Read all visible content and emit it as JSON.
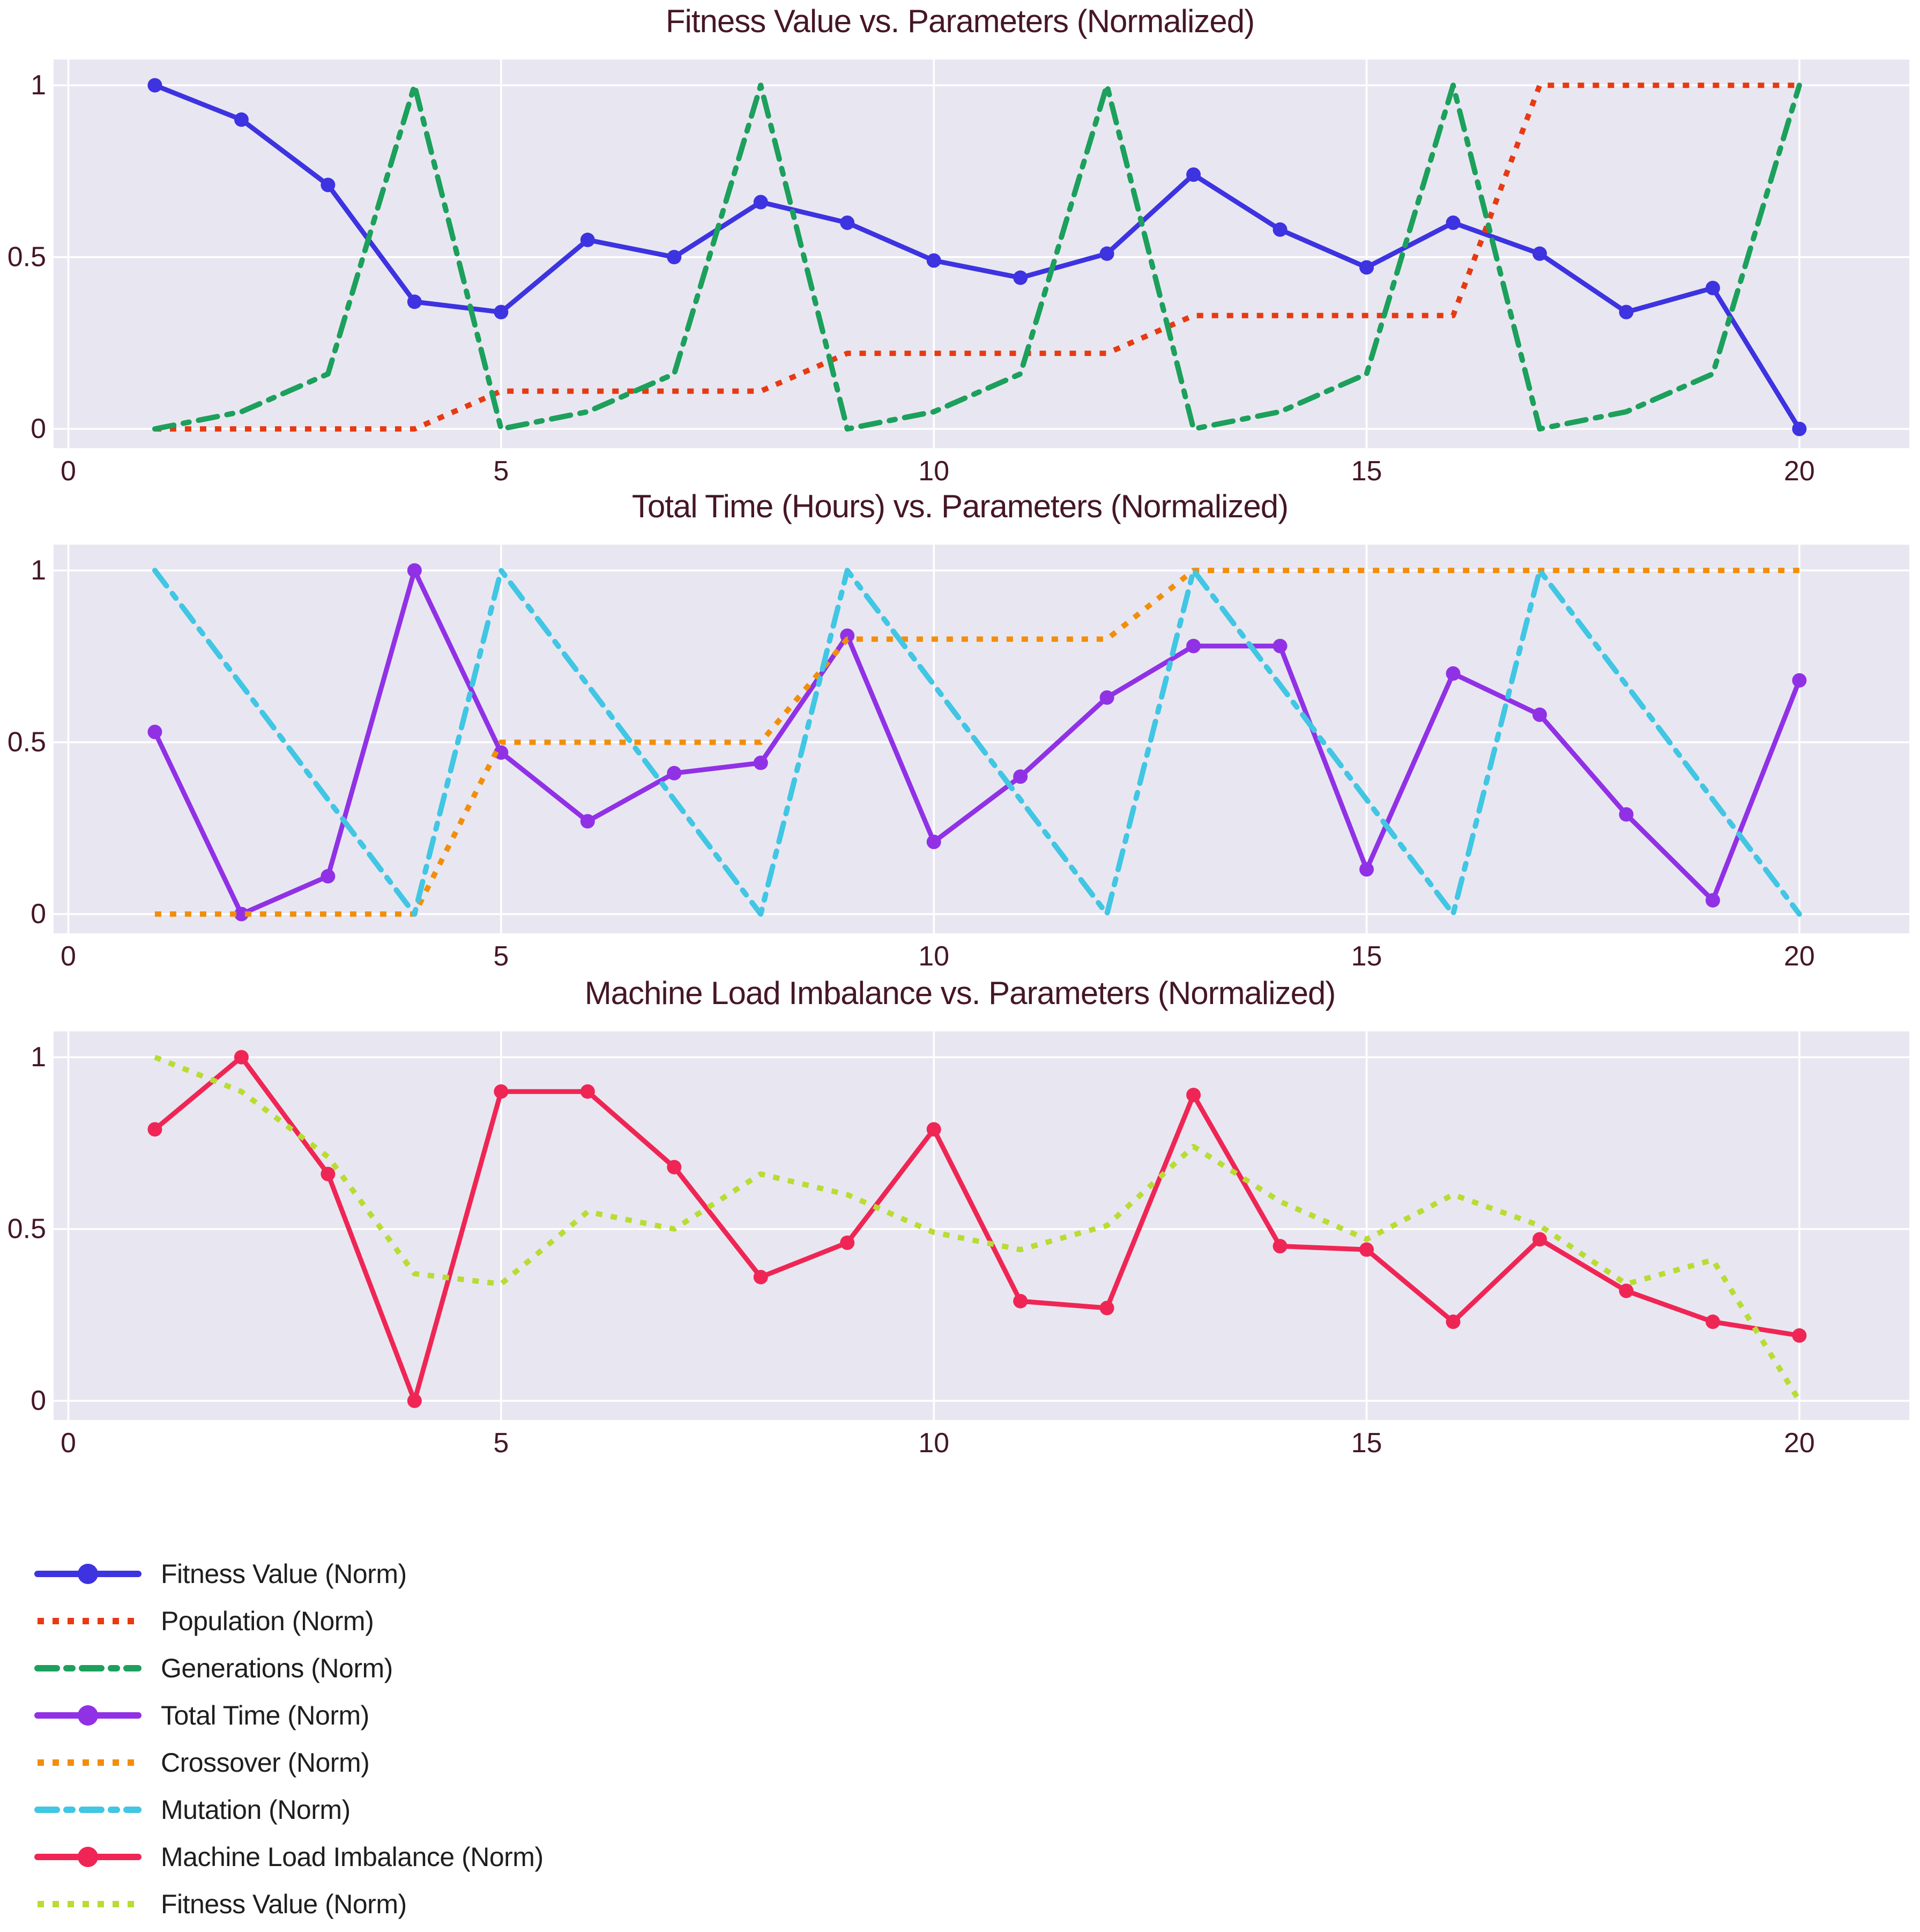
{
  "styles": {
    "page_bg": "#ffffff",
    "plot_bg": "#e8e7f1",
    "grid_color": "#ffffff",
    "title_color": "#451726",
    "tick_color": "#451726",
    "legend_text_color": "#1e1e1e"
  },
  "chart_data": [
    {
      "type": "line",
      "title": "Fitness Value vs. Parameters (Normalized)",
      "xlabel": "",
      "ylabel": "",
      "x": [
        1,
        2,
        3,
        4,
        5,
        6,
        7,
        8,
        9,
        10,
        11,
        12,
        13,
        14,
        15,
        16,
        17,
        18,
        19,
        20
      ],
      "xlim": [
        -0.17,
        21.27
      ],
      "ylim": [
        -0.056,
        1.075
      ],
      "x_ticks": [
        0,
        5,
        10,
        15,
        20
      ],
      "y_ticks": [
        0,
        0.5,
        1
      ],
      "grid": true,
      "series": [
        {
          "name": "Fitness Value (Norm)",
          "color": "#3d33e0",
          "line_style": "solid",
          "markers": true,
          "values": [
            1.0,
            0.9,
            0.71,
            0.37,
            0.34,
            0.55,
            0.5,
            0.66,
            0.6,
            0.49,
            0.44,
            0.51,
            0.74,
            0.58,
            0.47,
            0.6,
            0.51,
            0.34,
            0.41,
            0.0
          ]
        },
        {
          "name": "Population (Norm)",
          "color": "#e73a12",
          "line_style": "dotted",
          "markers": false,
          "values": [
            0,
            0,
            0,
            0,
            0.11,
            0.11,
            0.11,
            0.11,
            0.22,
            0.22,
            0.22,
            0.22,
            0.33,
            0.33,
            0.33,
            0.33,
            1,
            1,
            1,
            1
          ]
        },
        {
          "name": "Generations (Norm)",
          "color": "#1ca05c",
          "line_style": "dashdot",
          "markers": false,
          "values": [
            0,
            0.05,
            0.16,
            1,
            0,
            0.05,
            0.16,
            1,
            0,
            0.05,
            0.16,
            1,
            0,
            0.05,
            0.16,
            1,
            0,
            0.05,
            0.16,
            1
          ]
        }
      ]
    },
    {
      "type": "line",
      "title": "Total Time (Hours) vs. Parameters (Normalized)",
      "xlabel": "",
      "ylabel": "",
      "x": [
        1,
        2,
        3,
        4,
        5,
        6,
        7,
        8,
        9,
        10,
        11,
        12,
        13,
        14,
        15,
        16,
        17,
        18,
        19,
        20
      ],
      "xlim": [
        -0.17,
        21.27
      ],
      "ylim": [
        -0.056,
        1.075
      ],
      "x_ticks": [
        0,
        5,
        10,
        15,
        20
      ],
      "y_ticks": [
        0,
        0.5,
        1
      ],
      "grid": true,
      "series": [
        {
          "name": "Total Time (Norm)",
          "color": "#9131e6",
          "line_style": "solid",
          "markers": true,
          "values": [
            0.53,
            0.0,
            0.11,
            1.0,
            0.47,
            0.27,
            0.41,
            0.44,
            0.81,
            0.21,
            0.4,
            0.63,
            0.78,
            0.78,
            0.13,
            0.7,
            0.58,
            0.29,
            0.04,
            0.68
          ]
        },
        {
          "name": "Crossover (Norm)",
          "color": "#f28e0c",
          "line_style": "dotted",
          "markers": false,
          "values": [
            0,
            0,
            0,
            0,
            0.5,
            0.5,
            0.5,
            0.5,
            0.8,
            0.8,
            0.8,
            0.8,
            1,
            1,
            1,
            1,
            1,
            1,
            1,
            1
          ]
        },
        {
          "name": "Mutation (Norm)",
          "color": "#41c6e3",
          "line_style": "dashdot",
          "markers": false,
          "values": [
            1,
            0.667,
            0.333,
            0,
            1,
            0.667,
            0.333,
            0,
            1,
            0.667,
            0.333,
            0,
            1,
            0.667,
            0.333,
            0,
            1,
            0.667,
            0.333,
            0
          ]
        }
      ]
    },
    {
      "type": "line",
      "title": "Machine Load Imbalance vs. Parameters (Normalized)",
      "xlabel": "",
      "ylabel": "",
      "x": [
        1,
        2,
        3,
        4,
        5,
        6,
        7,
        8,
        9,
        10,
        11,
        12,
        13,
        14,
        15,
        16,
        17,
        18,
        19,
        20
      ],
      "xlim": [
        -0.17,
        21.27
      ],
      "ylim": [
        -0.056,
        1.075
      ],
      "x_ticks": [
        0,
        5,
        10,
        15,
        20
      ],
      "y_ticks": [
        0,
        0.5,
        1
      ],
      "grid": true,
      "series": [
        {
          "name": "Machine Load Imbalance (Norm)",
          "color": "#ef2655",
          "line_style": "solid",
          "markers": true,
          "values": [
            0.79,
            1.0,
            0.66,
            0.0,
            0.9,
            0.9,
            0.68,
            0.36,
            0.46,
            0.79,
            0.29,
            0.27,
            0.89,
            0.45,
            0.44,
            0.23,
            0.47,
            0.32,
            0.23,
            0.19
          ]
        },
        {
          "name": "Fitness Value (Norm)",
          "color": "#b8dc33",
          "line_style": "dotted",
          "markers": false,
          "values": [
            1.0,
            0.9,
            0.71,
            0.37,
            0.34,
            0.55,
            0.5,
            0.66,
            0.6,
            0.49,
            0.44,
            0.51,
            0.74,
            0.58,
            0.47,
            0.6,
            0.51,
            0.34,
            0.41,
            0.0
          ]
        }
      ]
    }
  ],
  "legend": {
    "position": "bottom-left",
    "items": [
      {
        "label": "Fitness Value (Norm)",
        "color": "#3d33e0",
        "line_style": "solid",
        "markers": true
      },
      {
        "label": "Population (Norm)",
        "color": "#e73a12",
        "line_style": "dotted",
        "markers": false
      },
      {
        "label": "Generations (Norm)",
        "color": "#1ca05c",
        "line_style": "dashdot",
        "markers": false
      },
      {
        "label": "Total Time (Norm)",
        "color": "#9131e6",
        "line_style": "solid",
        "markers": true
      },
      {
        "label": "Crossover (Norm)",
        "color": "#f28e0c",
        "line_style": "dotted",
        "markers": false
      },
      {
        "label": "Mutation (Norm)",
        "color": "#41c6e3",
        "line_style": "dashdot",
        "markers": false
      },
      {
        "label": "Machine Load Imbalance (Norm)",
        "color": "#ef2655",
        "line_style": "solid",
        "markers": true
      },
      {
        "label": "Fitness Value (Norm)",
        "color": "#b8dc33",
        "line_style": "dotted",
        "markers": false
      }
    ]
  }
}
